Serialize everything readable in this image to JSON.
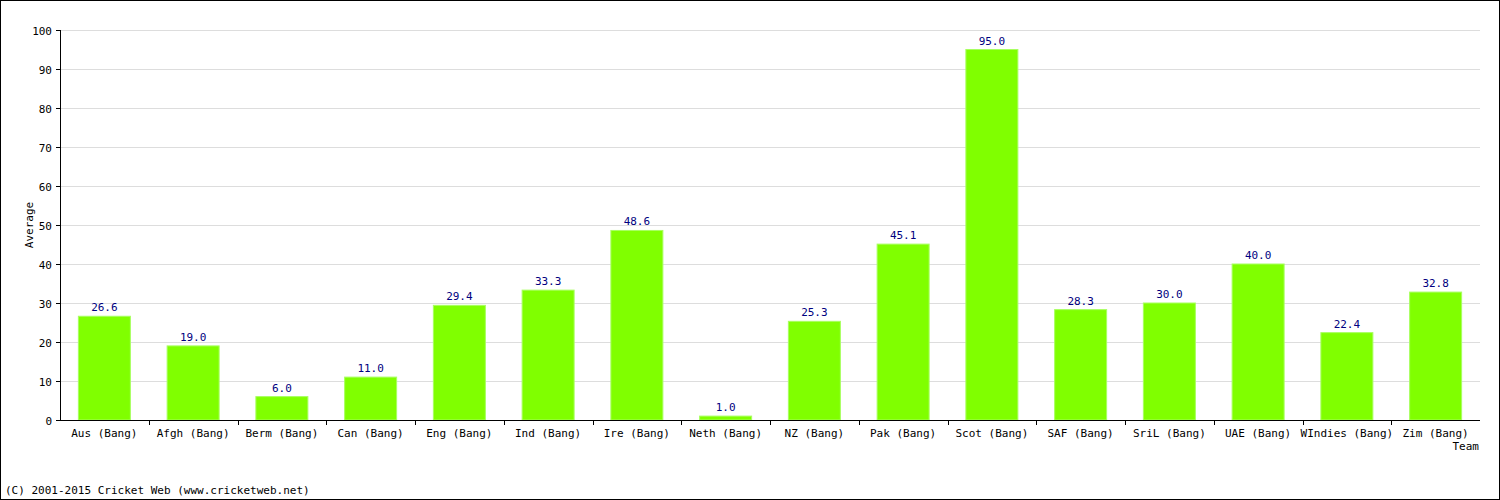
{
  "chart_data": {
    "type": "bar",
    "x_label": "Team",
    "y_label": "Average",
    "annotations": [
      "(C) 2001-2015 Cricket Web (www.cricketweb.net)"
    ],
    "categories": [
      "Aus (Bang)",
      "Afgh (Bang)",
      "Berm (Bang)",
      "Can (Bang)",
      "Eng (Bang)",
      "Ind (Bang)",
      "Ire (Bang)",
      "Neth (Bang)",
      "NZ (Bang)",
      "Pak (Bang)",
      "Scot (Bang)",
      "SAF (Bang)",
      "SriL (Bang)",
      "UAE (Bang)",
      "WIndies (Bang)",
      "Zim (Bang)"
    ],
    "values": [
      26.6,
      19.0,
      6.0,
      11.0,
      29.4,
      33.3,
      48.6,
      1.0,
      25.3,
      45.1,
      95.0,
      28.3,
      30.0,
      40.0,
      22.4,
      32.8
    ],
    "value_labels": [
      "26.6",
      "19.0",
      "6.0",
      "11.0",
      "29.4",
      "33.3",
      "48.6",
      "1.0",
      "25.3",
      "45.1",
      "95.0",
      "28.3",
      "30.0",
      "40.0",
      "22.4",
      "32.8"
    ],
    "color": "#80ff00",
    "ylim": [
      0,
      100
    ],
    "yticks": [
      0,
      10,
      20,
      30,
      40,
      50,
      60,
      70,
      80,
      90,
      100
    ],
    "grid": true,
    "data_labels": true
  }
}
